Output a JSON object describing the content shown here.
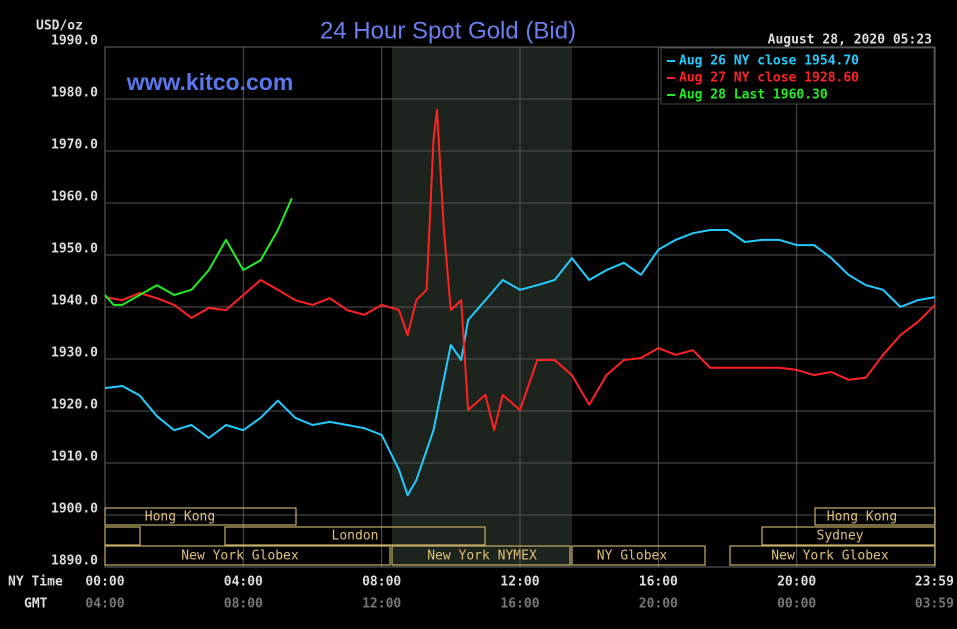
{
  "chart_data": {
    "type": "line",
    "title": "24 Hour Spot Gold (Bid)",
    "subtitle": "www.kitco.com",
    "timestamp": "August 28, 2020 05:23",
    "y_label": "USD/oz",
    "x_label": "NY Time",
    "x2_label": "GMT",
    "xlim": [
      0,
      24
    ],
    "ylim": [
      1890,
      1990
    ],
    "grid": true,
    "xticks": [
      {
        "value": 0,
        "label": "00:00"
      },
      {
        "value": 4,
        "label": "04:00"
      },
      {
        "value": 8,
        "label": "08:00"
      },
      {
        "value": 12,
        "label": "12:00"
      },
      {
        "value": 16,
        "label": "16:00"
      },
      {
        "value": 20,
        "label": "20:00"
      },
      {
        "value": 23.983,
        "label": "23:59"
      }
    ],
    "x2ticks": [
      {
        "value": 0,
        "label": "04:00"
      },
      {
        "value": 4,
        "label": "08:00"
      },
      {
        "value": 8,
        "label": "12:00"
      },
      {
        "value": 12,
        "label": "16:00"
      },
      {
        "value": 16,
        "label": "20:00"
      },
      {
        "value": 20,
        "label": "00:00"
      },
      {
        "value": 23.983,
        "label": "03:59"
      }
    ],
    "yticks": [
      {
        "value": 1890,
        "label": "1890.0"
      },
      {
        "value": 1900,
        "label": "1900.0"
      },
      {
        "value": 1910,
        "label": "1910.0"
      },
      {
        "value": 1920,
        "label": "1920.0"
      },
      {
        "value": 1930,
        "label": "1930.0"
      },
      {
        "value": 1940,
        "label": "1940.0"
      },
      {
        "value": 1950,
        "label": "1950.0"
      },
      {
        "value": 1960,
        "label": "1960.0"
      },
      {
        "value": 1970,
        "label": "1970.0"
      },
      {
        "value": 1980,
        "label": "1980.0"
      },
      {
        "value": 1990,
        "label": "1990.0"
      }
    ],
    "sessions": [
      "Hong Kong",
      "London",
      "New York Globex",
      "New York NYMEX",
      "NY Globex",
      "Sydney",
      "Hong Kong",
      "New York Globex"
    ],
    "series": [
      {
        "name": "Aug 26 NY close 1954.70",
        "color": "#22ccff",
        "x": [
          0,
          0.5,
          1,
          1.5,
          2,
          2.5,
          3,
          3.5,
          4,
          4.5,
          5,
          5.5,
          6,
          6.5,
          7,
          7.5,
          8,
          8.5,
          8.75,
          9,
          9.5,
          10,
          10.3,
          10.5,
          11,
          11.5,
          12,
          12.5,
          13,
          13.5,
          14,
          14.5,
          15,
          15.5,
          16,
          16.5,
          17,
          17.5,
          18,
          18.5,
          19,
          19.5,
          20,
          20.5,
          21,
          21.5,
          22,
          22.5,
          23,
          23.5,
          24
        ],
        "values": [
          1924.4,
          1924.8,
          1923,
          1919,
          1916.3,
          1917.3,
          1914.8,
          1917.3,
          1916.3,
          1918.7,
          1922,
          1918.7,
          1917.3,
          1917.9,
          1917.3,
          1916.7,
          1915.4,
          1908.7,
          1903.8,
          1906.7,
          1916.3,
          1932.7,
          1929.8,
          1937.5,
          1941.3,
          1945.2,
          1943.3,
          1944.2,
          1945.2,
          1949.4,
          1945.2,
          1947.1,
          1948.5,
          1946.2,
          1951,
          1952.9,
          1954.2,
          1954.8,
          1954.8,
          1952.5,
          1952.9,
          1952.9,
          1951.9,
          1951.9,
          1949.4,
          1946.2,
          1944.2,
          1943.3,
          1940,
          1941.3,
          1941.9
        ]
      },
      {
        "name": "Aug 27 NY close 1928.60",
        "color": "#ff2222",
        "x": [
          0,
          0.5,
          1,
          1.5,
          2,
          2.5,
          3,
          3.5,
          4,
          4.5,
          5,
          5.5,
          6,
          6.5,
          7,
          7.5,
          8,
          8.5,
          8.75,
          9,
          9.3,
          9.5,
          9.6,
          9.8,
          10,
          10.3,
          10.5,
          11,
          11.25,
          11.5,
          12,
          12.5,
          13,
          13.5,
          14,
          14.5,
          15,
          15.5,
          16,
          16.5,
          17,
          17.5,
          18,
          18.5,
          19,
          19.5,
          20,
          20.5,
          21,
          21.5,
          22,
          22.5,
          23,
          23.5,
          24
        ],
        "values": [
          1941.9,
          1941.3,
          1942.7,
          1941.7,
          1940.4,
          1937.9,
          1939.8,
          1939.4,
          1942.3,
          1945.2,
          1943.3,
          1941.3,
          1940.4,
          1941.7,
          1939.4,
          1938.5,
          1940.4,
          1939.4,
          1934.6,
          1941.3,
          1943.3,
          1972.1,
          1977.9,
          1954.8,
          1939.4,
          1941.3,
          1920.2,
          1923.1,
          1916.3,
          1923.1,
          1920.2,
          1929.8,
          1929.8,
          1926.9,
          1921.2,
          1926.9,
          1929.8,
          1930.2,
          1932.1,
          1930.8,
          1931.7,
          1928.3,
          1928.3,
          1928.3,
          1928.3,
          1928.3,
          1927.9,
          1926.9,
          1927.5,
          1926,
          1926.4,
          1930.8,
          1934.6,
          1937.1,
          1940.4
        ]
      },
      {
        "name": "Aug 28 Last 1960.30",
        "color": "#22ee22",
        "x": [
          0,
          0.25,
          0.5,
          1,
          1.5,
          2,
          2.5,
          3,
          3.5,
          4,
          4.5,
          5,
          5.4
        ],
        "values": [
          1942.3,
          1940.4,
          1940.4,
          1942.3,
          1944.2,
          1942.3,
          1943.3,
          1947.1,
          1952.9,
          1947.1,
          1949,
          1954.8,
          1960.9
        ]
      }
    ]
  }
}
